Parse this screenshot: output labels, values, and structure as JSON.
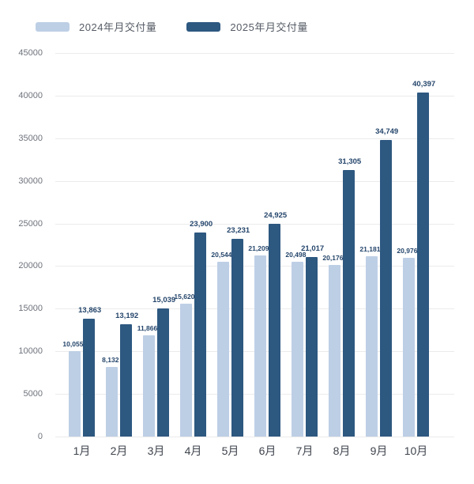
{
  "legend": {
    "items": [
      {
        "label": "2024年月交付量",
        "color": "#bdcfe5"
      },
      {
        "label": "2025年月交付量",
        "color": "#2d5880"
      }
    ]
  },
  "chart_data": {
    "type": "bar",
    "categories": [
      "1月",
      "2月",
      "3月",
      "4月",
      "5月",
      "6月",
      "7月",
      "8月",
      "9月",
      "10月"
    ],
    "series": [
      {
        "name": "2024年月交付量",
        "color": "#bdcfe5",
        "values": [
          10055,
          8132,
          11866,
          15620,
          20544,
          21209,
          20498,
          20176,
          21181,
          20976
        ]
      },
      {
        "name": "2025年月交付量",
        "color": "#2d5880",
        "values": [
          13863,
          13192,
          15039,
          23900,
          23231,
          24925,
          21017,
          31305,
          34749,
          40397
        ]
      }
    ],
    "title": "",
    "xlabel": "",
    "ylabel": "",
    "ylim": [
      0,
      45000
    ],
    "ytick_step": 5000,
    "grid": true,
    "legend_position": "top-left",
    "value_labels": "on",
    "label_format": "thousands-comma"
  }
}
